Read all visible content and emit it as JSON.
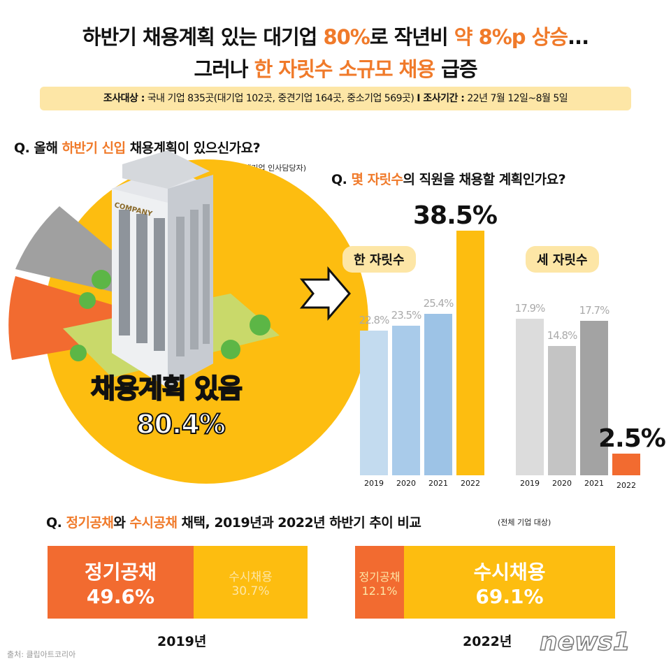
{
  "header": {
    "line1_a": "하반기 채용계획 있는 대기업 ",
    "line1_b": "80%",
    "line1_c": "로 작년비 ",
    "line1_d": "약 8%p 상승",
    "line1_e": "...",
    "line2_a": "그러나 ",
    "line2_b": "한 자릿수 소규모 채용",
    "line2_c": " 급증"
  },
  "banner": {
    "label1": "조사대상 :",
    "text1": " 국내 기업 835곳(대기업 102곳, 중견기업 164곳, 중소기업 569곳) ",
    "label2": "I 조사기간 :",
    "text2": " 22년 7월 12일~8월 5일"
  },
  "q1": {
    "a": "Q. 올해 ",
    "b": "하반기 신입",
    "c": " 채용계획이 있으신가요?",
    "note": "(대기업 인사담당자)",
    "pie_label": "채용계획 있음",
    "pie_value": "80.4%",
    "building_text": "COMPANY"
  },
  "q2": {
    "a": "Q. ",
    "b": "몇 자릿수",
    "c": "의 직원을 채용할 계획인가요?"
  },
  "q3": {
    "a": "Q. ",
    "b": "정기공채",
    "c": "와 ",
    "d": "수시공채",
    "e": " 채택, 2019년과 2022년 하반기 추이 비교",
    "note": "(전체 기업 대상)"
  },
  "source": "출처: 클립아트코리아",
  "logo": "news1",
  "colors": {
    "orange": "#f26b30",
    "yellow": "#fdbd10",
    "gray": "#a0a0a0",
    "accent_text": "#f07a2a"
  },
  "chart_data": [
    {
      "type": "pie",
      "slices": [
        {
          "label": "채용계획 있음",
          "value": 80.4,
          "color": "#fdbd10"
        }
      ],
      "note": "other slices unlabeled (orange, gray)"
    },
    {
      "type": "bar",
      "title": "한 자릿수",
      "categories": [
        "2019",
        "2020",
        "2021",
        "2022"
      ],
      "values": [
        22.8,
        23.5,
        25.4,
        38.5
      ],
      "labels": [
        "22.8%",
        "23.5%",
        "25.4%",
        "38.5%"
      ],
      "colors": [
        "#c3dbef",
        "#a9cbea",
        "#9dc3e6",
        "#fdbd10"
      ]
    },
    {
      "type": "bar",
      "title": "세 자릿수",
      "categories": [
        "2019",
        "2020",
        "2021",
        "2022"
      ],
      "values": [
        17.9,
        14.8,
        17.7,
        2.5
      ],
      "labels": [
        "17.9%",
        "14.8%",
        "17.7%",
        "2.5%"
      ],
      "colors": [
        "#dcdcdc",
        "#c4c4c4",
        "#a3a3a3",
        "#f26b30"
      ]
    },
    {
      "type": "bar",
      "stacked": true,
      "title": "2019년",
      "segments": [
        {
          "label": "정기공채",
          "value": 49.6,
          "text": "49.6%"
        },
        {
          "label": "수시채용",
          "value": 30.7,
          "text": "30.7%"
        }
      ]
    },
    {
      "type": "bar",
      "stacked": true,
      "title": "2022년",
      "segments": [
        {
          "label": "정기공채",
          "value": 12.1,
          "text": "12.1%"
        },
        {
          "label": "수시채용",
          "value": 69.1,
          "text": "69.1%"
        }
      ]
    }
  ]
}
